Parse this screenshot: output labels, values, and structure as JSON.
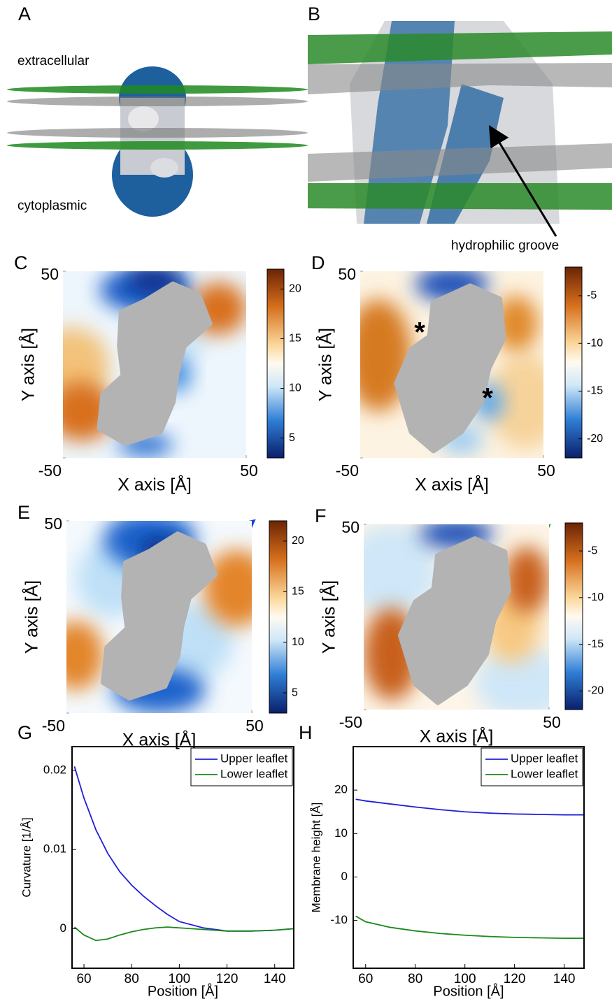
{
  "panels": [
    {
      "label": "A",
      "annotations": [
        "extracellular",
        "cytoplasmic"
      ]
    },
    {
      "label": "B",
      "annotations": [
        "hydrophilic groove"
      ]
    }
  ],
  "chart_data": [
    {
      "type": "heatmap",
      "label": "C",
      "xlabel": "X axis [Å]",
      "ylabel": "Y axis [Å]",
      "xlim": [
        -50,
        50
      ],
      "ylim": [
        -50,
        50
      ],
      "xticks": [
        50
      ],
      "yticks": [
        -50,
        50
      ],
      "clim": [
        3,
        22
      ],
      "cticks": [
        5,
        10,
        15,
        20
      ]
    },
    {
      "type": "heatmap",
      "label": "D",
      "xlabel": "X axis [Å]",
      "ylabel": "Y axis [Å]",
      "xlim": [
        -50,
        50
      ],
      "ylim": [
        -50,
        50
      ],
      "xticks": [
        50
      ],
      "yticks": [
        -50,
        50
      ],
      "clim": [
        -22,
        -2
      ],
      "cticks": [
        -20,
        -15,
        -10,
        -5
      ],
      "annotations": [
        "*",
        "*"
      ]
    },
    {
      "type": "heatmap",
      "label": "E",
      "xlabel": "X axis [Å]",
      "ylabel": "Y axis [Å]",
      "xlim": [
        -50,
        50
      ],
      "ylim": [
        -50,
        50
      ],
      "xticks": [
        50
      ],
      "yticks": [
        -50,
        50
      ],
      "clim": [
        3,
        22
      ],
      "cticks": [
        5,
        10,
        15,
        20
      ]
    },
    {
      "type": "heatmap",
      "label": "F",
      "xlabel": "X axis [Å]",
      "ylabel": "Y axis [Å]",
      "xlim": [
        -50,
        50
      ],
      "ylim": [
        -50,
        50
      ],
      "xticks": [
        50
      ],
      "yticks": [
        -50,
        50
      ],
      "clim": [
        -22,
        -2
      ],
      "cticks": [
        -20,
        -15,
        -10,
        -5
      ]
    },
    {
      "type": "line",
      "label": "G",
      "xlabel": "Position [Å]",
      "ylabel": "Curvature [1/Å]",
      "xlim": [
        55,
        148
      ],
      "ylim": [
        -0.005,
        0.023
      ],
      "xticks": [
        60,
        80,
        100,
        120,
        140
      ],
      "yticks": [
        0,
        0.01,
        0.02
      ],
      "legend": "upper right",
      "x": [
        56,
        60,
        65,
        70,
        75,
        80,
        85,
        90,
        95,
        100,
        110,
        120,
        130,
        140,
        148
      ],
      "series": [
        {
          "name": "Upper leaflet",
          "color": "#1f1fd6",
          "values": [
            0.0205,
            0.0165,
            0.0125,
            0.0095,
            0.0072,
            0.0055,
            0.0041,
            0.0029,
            0.0018,
            0.0009,
            0.0001,
            -0.0003,
            -0.0003,
            -0.0002,
            0.0
          ]
        },
        {
          "name": "Lower leaflet",
          "color": "#1a8a1a",
          "values": [
            0.0002,
            -0.0008,
            -0.0015,
            -0.0013,
            -0.0008,
            -0.0004,
            -0.0001,
            0.0001,
            0.0002,
            0.0001,
            -0.0001,
            -0.0003,
            -0.0003,
            -0.0002,
            0.0
          ]
        }
      ]
    },
    {
      "type": "line",
      "label": "H",
      "xlabel": "Position [Å]",
      "ylabel": "Membrane height [Å]",
      "xlim": [
        55,
        148
      ],
      "ylim": [
        -21,
        30
      ],
      "xticks": [
        60,
        80,
        100,
        120,
        140
      ],
      "yticks": [
        -10,
        0,
        10,
        20
      ],
      "legend": "upper right",
      "x": [
        56,
        60,
        70,
        80,
        90,
        100,
        110,
        120,
        130,
        140,
        148
      ],
      "series": [
        {
          "name": "Upper leaflet",
          "color": "#1f1fd6",
          "values": [
            17.9,
            17.5,
            16.8,
            16.1,
            15.5,
            15.0,
            14.7,
            14.5,
            14.4,
            14.3,
            14.3
          ]
        },
        {
          "name": "Lower leaflet",
          "color": "#1a8a1a",
          "values": [
            -9,
            -10.3,
            -11.6,
            -12.4,
            -13,
            -13.4,
            -13.7,
            -13.9,
            -14,
            -14.1,
            -14.1
          ]
        }
      ]
    }
  ]
}
